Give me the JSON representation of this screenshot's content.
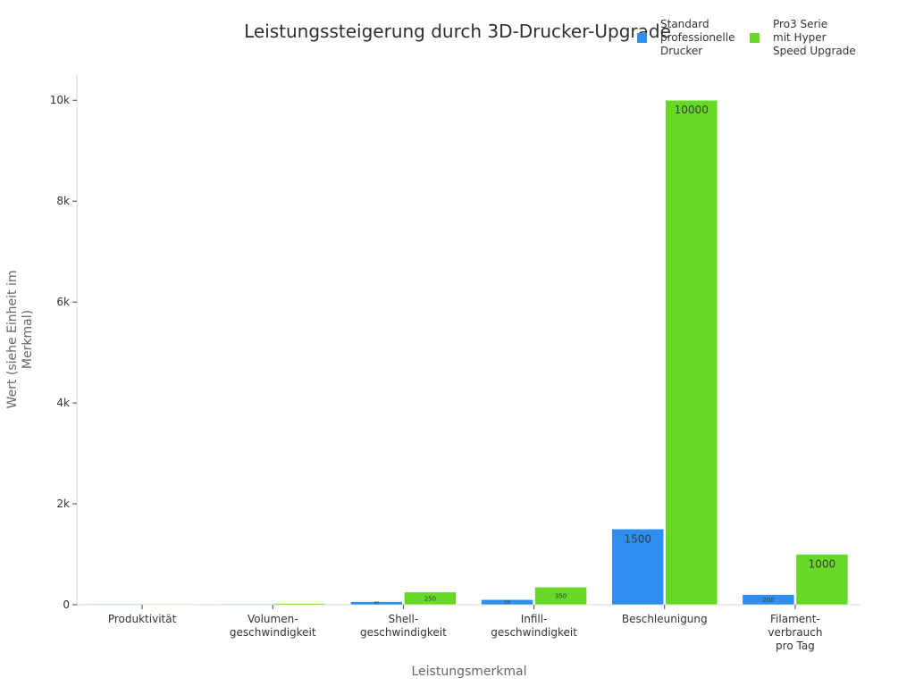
{
  "chart_data": {
    "type": "bar",
    "title": "Leistungssteigerung durch 3D-Drucker-Upgrade",
    "xlabel": "Leistungsmerkmal",
    "ylabel_lines": [
      "Wert (siehe Einheit im",
      "Merkmal)"
    ],
    "categories": [
      [
        "Produktivität"
      ],
      [
        "Volumen-",
        "geschwindigkeit"
      ],
      [
        "Shell-",
        "geschwindigkeit"
      ],
      [
        "Infill-",
        "geschwindigkeit"
      ],
      [
        "Beschleunigung"
      ],
      [
        "Filament-",
        "verbrauch",
        "pro Tag"
      ]
    ],
    "series": [
      {
        "name_lines": [
          "Standard",
          "professionelle",
          "Drucker"
        ],
        "color": "#2e8ff0",
        "values": [
          1,
          3,
          60,
          100,
          1500,
          200
        ],
        "labels": [
          "1",
          "3",
          "60",
          "100",
          "1500",
          "200"
        ]
      },
      {
        "name_lines": [
          "Pro3 Serie",
          "mit Hyper",
          "Speed Upgrade"
        ],
        "color": "#66d926",
        "values": [
          2,
          24,
          250,
          350,
          10000,
          1000
        ],
        "labels": [
          "2",
          "24",
          "250",
          "350",
          "10000",
          "1000"
        ]
      }
    ],
    "ylim": [
      0,
      10500
    ],
    "yticks": [
      0,
      2000,
      4000,
      6000,
      8000,
      10000
    ],
    "ytick_labels": [
      "0",
      "2k",
      "4k",
      "6k",
      "8k",
      "10k"
    ],
    "grid": false,
    "legend_position": "top-right"
  }
}
